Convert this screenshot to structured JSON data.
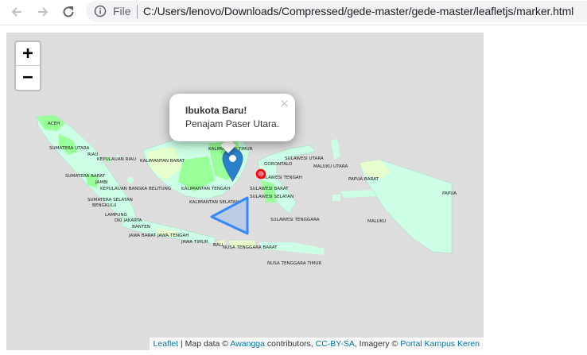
{
  "browser": {
    "file_label": "File",
    "url": "C:/Users/lenovo/Downloads/Compressed/gede-master/gede-master/leafletjs/marker.html"
  },
  "map": {
    "zoom_in_label": "+",
    "zoom_out_label": "−",
    "popup": {
      "title": "Ibukota Baru!",
      "text": "Penajam Paser Utara.",
      "close": "×"
    },
    "province_labels": [
      "ACEH",
      "SUMATERA UTARA",
      "RIAU",
      "KEPULAUAN RIAU",
      "KALIMANTAN BARAT",
      "SUMATERA BARAT",
      "JAMBI",
      "KEPULAUAN BANGKA BELITUNG",
      "SUMATERA SELATAN",
      "BENGKULU",
      "LAMPUNG",
      "DKI JAKARTA",
      "BANTEN",
      "JAWA BARAT",
      "JAWA TENGAH",
      "JAWA TIMUR",
      "BALI",
      "NUSA TENGGARA BARAT",
      "NUSA TENGGARA TIMUR",
      "KALIMANTAN TENGAH",
      "KALIMANTAN SELATAN",
      "KALIMANTAN TIMUR",
      "SULAWESI UTARA",
      "GORONTALO",
      "MALUKU UTARA",
      "SULAWESI TENGAH",
      "SULAWESI BARAT",
      "SULAWESI SELATAN",
      "SULAWESI TENGGARA",
      "PAPUA BARAT",
      "MALUKU",
      "PAPUA"
    ],
    "attribution": {
      "leaflet": "Leaflet",
      "sep": " | Map data © ",
      "awangga": "Awangga",
      "contributors": " contributors, ",
      "license": "CC-BY-SA",
      "imagery": ", Imagery © ",
      "portal": "Portal Kampus Keren"
    },
    "colors": {
      "water": "#dddddd",
      "land_light": "#ccffe6",
      "land_green": "#99ff99",
      "land_yellow": "#e6ffcc",
      "marker": "#2a81cb",
      "triangle": "#3388ff",
      "circle": "#ff0000"
    }
  }
}
